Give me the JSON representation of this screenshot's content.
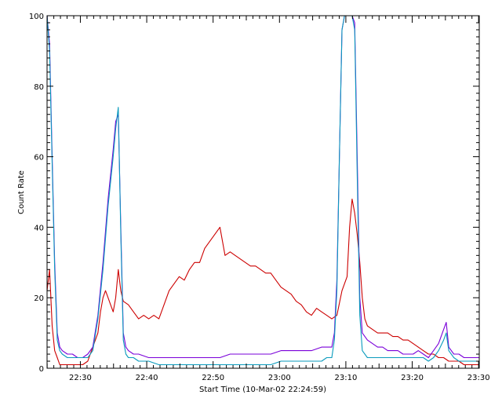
{
  "chart_data": {
    "type": "line",
    "xlabel": "Start Time (10-Mar-02 22:24:59)",
    "ylabel": "Count Rate",
    "ylim": [
      0,
      100
    ],
    "y_ticks": [
      0,
      20,
      40,
      60,
      80,
      100
    ],
    "x_tick_labels": [
      "22:30",
      "22:40",
      "22:50",
      "23:00",
      "23:10",
      "23:20",
      "23:30"
    ],
    "grid": false,
    "legend": "none",
    "series": [
      {
        "color": "#cc0000",
        "points": [
          [
            0,
            22
          ],
          [
            0.5,
            28
          ],
          [
            1,
            12
          ],
          [
            1.5,
            5
          ],
          [
            2,
            3
          ],
          [
            2.5,
            1
          ],
          [
            3,
            1
          ],
          [
            4,
            1
          ],
          [
            5,
            1
          ],
          [
            6,
            1
          ],
          [
            7,
            1
          ],
          [
            8,
            2
          ],
          [
            9,
            6
          ],
          [
            10,
            10
          ],
          [
            10.5,
            16
          ],
          [
            11,
            20
          ],
          [
            11.5,
            22
          ],
          [
            12,
            20
          ],
          [
            12.5,
            18
          ],
          [
            13,
            16
          ],
          [
            13.5,
            20
          ],
          [
            14,
            28
          ],
          [
            14.5,
            22
          ],
          [
            15,
            19
          ],
          [
            16,
            18
          ],
          [
            17,
            16
          ],
          [
            18,
            14
          ],
          [
            19,
            15
          ],
          [
            20,
            14
          ],
          [
            21,
            15
          ],
          [
            22,
            14
          ],
          [
            23,
            18
          ],
          [
            24,
            22
          ],
          [
            25,
            24
          ],
          [
            26,
            26
          ],
          [
            27,
            25
          ],
          [
            28,
            28
          ],
          [
            29,
            30
          ],
          [
            30,
            30
          ],
          [
            31,
            34
          ],
          [
            32,
            36
          ],
          [
            33,
            38
          ],
          [
            34,
            40
          ],
          [
            35,
            32
          ],
          [
            36,
            33
          ],
          [
            37,
            32
          ],
          [
            38,
            31
          ],
          [
            39,
            30
          ],
          [
            40,
            29
          ],
          [
            41,
            29
          ],
          [
            42,
            28
          ],
          [
            43,
            27
          ],
          [
            44,
            27
          ],
          [
            45,
            25
          ],
          [
            46,
            23
          ],
          [
            47,
            22
          ],
          [
            48,
            21
          ],
          [
            49,
            19
          ],
          [
            50,
            18
          ],
          [
            51,
            16
          ],
          [
            52,
            15
          ],
          [
            53,
            17
          ],
          [
            54,
            16
          ],
          [
            55,
            15
          ],
          [
            56,
            14
          ],
          [
            57,
            15
          ],
          [
            58,
            22
          ],
          [
            59,
            26
          ],
          [
            59.5,
            40
          ],
          [
            60,
            48
          ],
          [
            60.5,
            44
          ],
          [
            61,
            38
          ],
          [
            61.5,
            30
          ],
          [
            62,
            20
          ],
          [
            62.5,
            14
          ],
          [
            63,
            12
          ],
          [
            64,
            11
          ],
          [
            65,
            10
          ],
          [
            66,
            10
          ],
          [
            67,
            10
          ],
          [
            68,
            9
          ],
          [
            69,
            9
          ],
          [
            70,
            8
          ],
          [
            71,
            8
          ],
          [
            72,
            7
          ],
          [
            73,
            6
          ],
          [
            74,
            5
          ],
          [
            75,
            4
          ],
          [
            76,
            4
          ],
          [
            77,
            3
          ],
          [
            78,
            3
          ],
          [
            79,
            2
          ],
          [
            80,
            2
          ],
          [
            81,
            2
          ],
          [
            82,
            1
          ],
          [
            83,
            1
          ],
          [
            84,
            1
          ],
          [
            85,
            1
          ]
        ]
      },
      {
        "color": "#7a00d9",
        "points": [
          [
            0,
            100
          ],
          [
            0.5,
            92
          ],
          [
            1,
            60
          ],
          [
            1.5,
            30
          ],
          [
            2,
            10
          ],
          [
            2.5,
            6
          ],
          [
            3,
            5
          ],
          [
            4,
            4
          ],
          [
            5,
            4
          ],
          [
            6,
            3
          ],
          [
            7,
            3
          ],
          [
            8,
            4
          ],
          [
            9,
            6
          ],
          [
            10,
            15
          ],
          [
            11,
            30
          ],
          [
            12,
            48
          ],
          [
            13,
            62
          ],
          [
            13.5,
            70
          ],
          [
            14,
            72
          ],
          [
            14.5,
            40
          ],
          [
            15,
            10
          ],
          [
            15.5,
            6
          ],
          [
            16,
            5
          ],
          [
            17,
            4
          ],
          [
            18,
            4
          ],
          [
            20,
            3
          ],
          [
            22,
            3
          ],
          [
            24,
            3
          ],
          [
            26,
            3
          ],
          [
            28,
            3
          ],
          [
            30,
            3
          ],
          [
            32,
            3
          ],
          [
            34,
            3
          ],
          [
            36,
            4
          ],
          [
            38,
            4
          ],
          [
            40,
            4
          ],
          [
            42,
            4
          ],
          [
            44,
            4
          ],
          [
            46,
            5
          ],
          [
            48,
            5
          ],
          [
            50,
            5
          ],
          [
            52,
            5
          ],
          [
            54,
            6
          ],
          [
            55,
            6
          ],
          [
            56,
            6
          ],
          [
            56.5,
            10
          ],
          [
            57,
            25
          ],
          [
            57.5,
            60
          ],
          [
            58,
            96
          ],
          [
            58.5,
            100
          ],
          [
            59,
            100
          ],
          [
            59.5,
            100
          ],
          [
            60,
            100
          ],
          [
            60.5,
            98
          ],
          [
            61,
            60
          ],
          [
            61.5,
            20
          ],
          [
            62,
            10
          ],
          [
            63,
            8
          ],
          [
            64,
            7
          ],
          [
            65,
            6
          ],
          [
            66,
            6
          ],
          [
            67,
            5
          ],
          [
            68,
            5
          ],
          [
            69,
            5
          ],
          [
            70,
            4
          ],
          [
            71,
            4
          ],
          [
            72,
            4
          ],
          [
            73,
            5
          ],
          [
            74,
            4
          ],
          [
            75,
            3
          ],
          [
            76,
            5
          ],
          [
            77,
            7
          ],
          [
            78,
            11
          ],
          [
            78.5,
            13
          ],
          [
            79,
            6
          ],
          [
            80,
            4
          ],
          [
            81,
            4
          ],
          [
            82,
            3
          ],
          [
            83,
            3
          ],
          [
            84,
            3
          ],
          [
            85,
            3
          ]
        ]
      },
      {
        "color": "#0a9bbd",
        "points": [
          [
            0,
            100
          ],
          [
            0.5,
            90
          ],
          [
            1,
            58
          ],
          [
            1.5,
            28
          ],
          [
            2,
            8
          ],
          [
            2.5,
            5
          ],
          [
            3,
            4
          ],
          [
            4,
            3
          ],
          [
            5,
            3
          ],
          [
            6,
            3
          ],
          [
            7,
            3
          ],
          [
            8,
            3
          ],
          [
            9,
            5
          ],
          [
            10,
            14
          ],
          [
            11,
            28
          ],
          [
            12,
            46
          ],
          [
            13,
            60
          ],
          [
            13.5,
            68
          ],
          [
            14,
            74
          ],
          [
            14.5,
            38
          ],
          [
            15,
            8
          ],
          [
            15.5,
            4
          ],
          [
            16,
            3
          ],
          [
            17,
            3
          ],
          [
            18,
            2
          ],
          [
            20,
            2
          ],
          [
            22,
            1
          ],
          [
            24,
            1
          ],
          [
            26,
            1
          ],
          [
            28,
            1
          ],
          [
            30,
            1
          ],
          [
            32,
            1
          ],
          [
            34,
            1
          ],
          [
            36,
            1
          ],
          [
            38,
            1
          ],
          [
            40,
            1
          ],
          [
            42,
            1
          ],
          [
            44,
            1
          ],
          [
            46,
            2
          ],
          [
            48,
            2
          ],
          [
            50,
            2
          ],
          [
            52,
            2
          ],
          [
            54,
            2
          ],
          [
            55,
            3
          ],
          [
            56,
            3
          ],
          [
            56.5,
            8
          ],
          [
            57,
            22
          ],
          [
            57.5,
            60
          ],
          [
            58,
            96
          ],
          [
            58.5,
            100
          ],
          [
            59,
            100
          ],
          [
            59.5,
            100
          ],
          [
            60,
            100
          ],
          [
            60.5,
            96
          ],
          [
            61,
            55
          ],
          [
            61.5,
            15
          ],
          [
            62,
            5
          ],
          [
            63,
            3
          ],
          [
            64,
            3
          ],
          [
            65,
            3
          ],
          [
            66,
            3
          ],
          [
            67,
            3
          ],
          [
            68,
            3
          ],
          [
            69,
            3
          ],
          [
            70,
            3
          ],
          [
            71,
            3
          ],
          [
            72,
            3
          ],
          [
            73,
            3
          ],
          [
            74,
            3
          ],
          [
            75,
            2
          ],
          [
            76,
            3
          ],
          [
            77,
            5
          ],
          [
            78,
            8
          ],
          [
            78.5,
            10
          ],
          [
            79,
            5
          ],
          [
            80,
            3
          ],
          [
            81,
            2
          ],
          [
            82,
            2
          ],
          [
            83,
            2
          ],
          [
            84,
            2
          ],
          [
            85,
            2
          ]
        ]
      }
    ]
  }
}
